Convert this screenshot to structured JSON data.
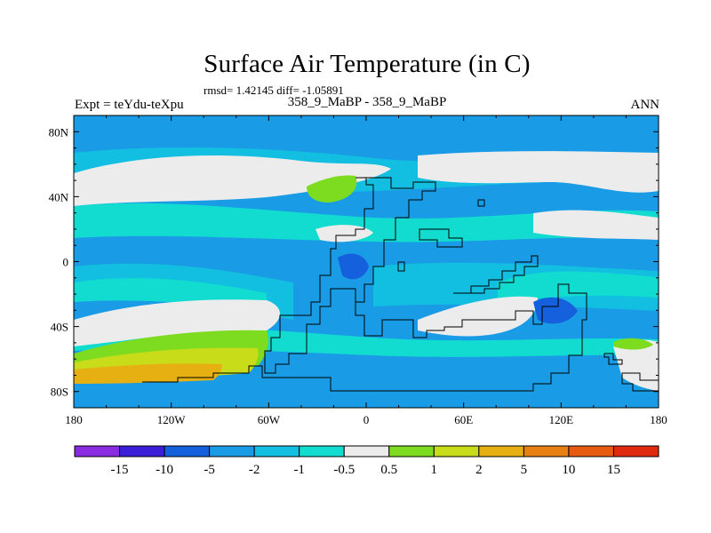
{
  "title": "Surface Air Temperature (in C)",
  "stats_line": "rmsd= 1.42145 diff= -1.05891",
  "expt_label": "Expt = teYdu-teXpu",
  "period_label": "358_9_MaBP - 358_9_MaBP",
  "season_label": "ANN",
  "axes": {
    "lon_ticks": [
      {
        "value": -180,
        "label": "180"
      },
      {
        "value": -120,
        "label": "120W"
      },
      {
        "value": -60,
        "label": "60W"
      },
      {
        "value": 0,
        "label": "0"
      },
      {
        "value": 60,
        "label": "60E"
      },
      {
        "value": 120,
        "label": "120E"
      },
      {
        "value": 180,
        "label": "180"
      }
    ],
    "lat_ticks": [
      {
        "value": 80,
        "label": "80N"
      },
      {
        "value": 40,
        "label": "40N"
      },
      {
        "value": 0,
        "label": "0"
      },
      {
        "value": -40,
        "label": "40S"
      },
      {
        "value": -80,
        "label": "80S"
      }
    ],
    "lon_range": [
      -180,
      180
    ],
    "lat_range": [
      -90,
      90
    ]
  },
  "colorbar": {
    "colors": [
      "#8a2be2",
      "#3a1ed8",
      "#1560dc",
      "#1a9be6",
      "#12bfe0",
      "#12dcd0",
      "#ececec",
      "#7ddc1f",
      "#c8dc1a",
      "#e6b012",
      "#e68012",
      "#e65a12",
      "#e02a0f"
    ],
    "labels": [
      "-15",
      "-10",
      "-5",
      "-2",
      "-1",
      "-0.5",
      "0.5",
      "1",
      "2",
      "5",
      "10",
      "15"
    ]
  },
  "map_colors": {
    "background": "#1a9be6",
    "band_light": "#12bfe0",
    "band_cyan": "#12dcd0",
    "near_zero": "#ececec",
    "warm_1": "#7ddc1f",
    "warm_2": "#c8dc1a",
    "warm_3": "#e6b012",
    "warm_4": "#e68012",
    "cool_2": "#1560dc"
  }
}
